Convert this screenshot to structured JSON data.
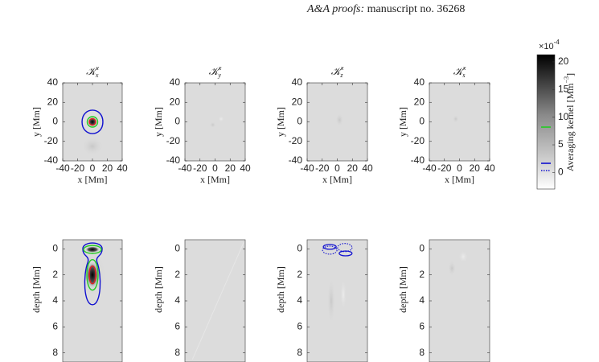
{
  "header": {
    "italic": "A&A proofs:",
    "text": "manuscript no. 36268"
  },
  "chart_data": [
    {
      "type": "heatmap",
      "title": "𝒦",
      "title_sub": "x",
      "title_sup": "x",
      "xlabel": "x [Mm]",
      "ylabel": "y [Mm]",
      "xlim": [
        -40,
        40
      ],
      "ylim": [
        -40,
        40
      ],
      "xticks": [
        -40,
        -20,
        0,
        20,
        40
      ],
      "yticks": [
        -40,
        -20,
        0,
        20,
        40
      ]
    },
    {
      "type": "heatmap",
      "title": "𝒦",
      "title_sub": "y",
      "title_sup": "x",
      "xlabel": "x [Mm]",
      "ylabel": "y [Mm]",
      "xlim": [
        -40,
        40
      ],
      "ylim": [
        -40,
        40
      ],
      "xticks": [
        -40,
        -20,
        0,
        20,
        40
      ],
      "yticks": [
        -40,
        -20,
        0,
        20,
        40
      ]
    },
    {
      "type": "heatmap",
      "title": "𝒦",
      "title_sub": "z",
      "title_sup": "x",
      "xlabel": "x [Mm]",
      "ylabel": "y [Mm]",
      "xlim": [
        -40,
        40
      ],
      "ylim": [
        -40,
        40
      ],
      "xticks": [
        -40,
        -20,
        0,
        20,
        40
      ],
      "yticks": [
        -40,
        -20,
        0,
        20,
        40
      ]
    },
    {
      "type": "heatmap",
      "title": "𝒦",
      "title_sub": "s",
      "title_sup": "x",
      "xlabel": "x [Mm]",
      "ylabel": "y [Mm]",
      "xlim": [
        -40,
        40
      ],
      "ylim": [
        -40,
        40
      ],
      "xticks": [
        -40,
        -20,
        0,
        20,
        40
      ],
      "yticks": [
        -40,
        -20,
        0,
        20,
        40
      ]
    },
    {
      "type": "heatmap",
      "ylabel": "depth [Mm]",
      "xlim": [
        -40,
        40
      ],
      "ylim": [
        -0.7,
        8.7
      ],
      "yreverse": true,
      "yticks": [
        0,
        2,
        4,
        6,
        8
      ]
    },
    {
      "type": "heatmap",
      "ylabel": "depth [Mm]",
      "xlim": [
        -40,
        40
      ],
      "ylim": [
        -0.7,
        8.7
      ],
      "yreverse": true,
      "yticks": [
        0,
        2,
        4,
        6,
        8
      ]
    },
    {
      "type": "heatmap",
      "ylabel": "depth [Mm]",
      "xlim": [
        -40,
        40
      ],
      "ylim": [
        -0.7,
        8.7
      ],
      "yreverse": true,
      "yticks": [
        0,
        2,
        4,
        6,
        8
      ]
    },
    {
      "type": "heatmap",
      "ylabel": "depth [Mm]",
      "xlim": [
        -40,
        40
      ],
      "ylim": [
        -0.7,
        8.7
      ],
      "yreverse": true,
      "yticks": [
        0,
        2,
        4,
        6,
        8
      ]
    },
    {
      "type": "colorbar",
      "multiplier": "×10",
      "multiplier_sup": "-4",
      "label": "Averaging kernel [Mm",
      "label_sup": "−3",
      "label_end": "]",
      "clim": [
        -3,
        21.3
      ],
      "ticks": [
        0,
        5,
        10,
        15,
        20
      ]
    }
  ]
}
